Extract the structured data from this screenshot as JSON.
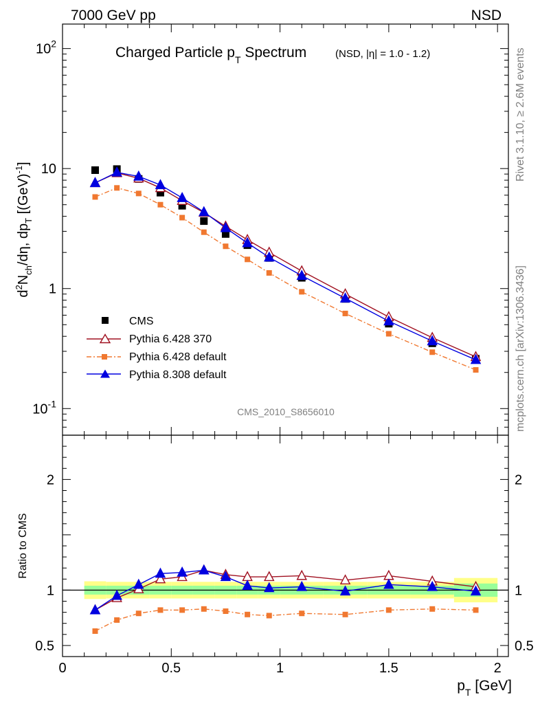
{
  "header": {
    "left": "7000 GeV pp",
    "right": "NSD"
  },
  "side": {
    "rivet": "Rivet 3.1.10, ≥ 2.6M events",
    "mcplots": "mcplots.cern.ch [arXiv:1306.3436]"
  },
  "analysis_id": "CMS_2010_S8656010",
  "chart_data": {
    "type": "line",
    "title": "Charged Particle p_T Spectrum",
    "title_main": "Charged Particle p",
    "title_sub": "T",
    "title_tail": " Spectrum",
    "subtitle": "(NSD, |η| = 1.0 - 1.2)",
    "xlabel": "p_T [GeV]",
    "ylabel": "d²N_ch/dη, dp_T [(GeV)⁻¹]",
    "ratio_ylabel": "Ratio to CMS",
    "xlim": [
      0,
      2.05
    ],
    "ylim": [
      0.06,
      160
    ],
    "yscale": "log",
    "ratio_ylim": [
      0.4,
      2.4
    ],
    "legend_position": "lower-left",
    "x_ticks": [
      "0",
      "0.5",
      "1",
      "1.5",
      "2"
    ],
    "y_ticks": [
      "10⁻¹",
      "1",
      "10",
      "10²"
    ],
    "ratio_ticks": [
      "0.5",
      "1",
      "2"
    ],
    "series": [
      {
        "name": "CMS",
        "color": "#000000",
        "marker": "square",
        "x": [
          0.15,
          0.25,
          0.35,
          0.45,
          0.55,
          0.65,
          0.75,
          0.85,
          0.95,
          1.1,
          1.3,
          1.5,
          1.7,
          1.9
        ],
        "values": [
          9.7,
          9.9,
          8.2,
          6.3,
          4.9,
          3.65,
          2.85,
          2.3,
          1.8,
          1.23,
          0.82,
          0.51,
          0.35,
          0.26
        ],
        "band_edges": [
          0.1,
          0.2,
          0.3,
          0.4,
          0.5,
          0.6,
          0.7,
          0.8,
          0.9,
          1.0,
          1.2,
          1.4,
          1.6,
          1.8,
          2.0
        ],
        "stat_err": [
          0.04,
          0.04,
          0.04,
          0.04,
          0.04,
          0.04,
          0.04,
          0.04,
          0.04,
          0.04,
          0.04,
          0.04,
          0.04,
          0.06
        ],
        "total_err": [
          0.08,
          0.075,
          0.075,
          0.075,
          0.075,
          0.075,
          0.075,
          0.075,
          0.075,
          0.075,
          0.075,
          0.075,
          0.075,
          0.11
        ]
      },
      {
        "name": "Pythia 6.428 370",
        "color": "#a01020",
        "marker": "open-triangle",
        "style": "solid",
        "x": [
          0.15,
          0.25,
          0.35,
          0.45,
          0.55,
          0.65,
          0.75,
          0.85,
          0.95,
          1.1,
          1.3,
          1.5,
          1.7,
          1.9
        ],
        "values": [
          7.6,
          9.2,
          8.3,
          6.9,
          5.4,
          4.3,
          3.3,
          2.55,
          2.0,
          1.4,
          0.9,
          0.58,
          0.39,
          0.27
        ],
        "ratio": [
          0.82,
          0.93,
          1.01,
          1.1,
          1.12,
          1.18,
          1.14,
          1.12,
          1.12,
          1.13,
          1.09,
          1.13,
          1.08,
          1.03
        ]
      },
      {
        "name": "Pythia 6.428 default",
        "color": "#f07830",
        "marker": "square",
        "style": "dashdot",
        "x": [
          0.15,
          0.25,
          0.35,
          0.45,
          0.55,
          0.65,
          0.75,
          0.85,
          0.95,
          1.1,
          1.3,
          1.5,
          1.7,
          1.9
        ],
        "values": [
          5.8,
          6.9,
          6.2,
          5.0,
          3.9,
          2.95,
          2.25,
          1.75,
          1.35,
          0.94,
          0.62,
          0.42,
          0.295,
          0.21
        ],
        "ratio": [
          0.63,
          0.73,
          0.79,
          0.82,
          0.82,
          0.83,
          0.81,
          0.78,
          0.77,
          0.79,
          0.78,
          0.82,
          0.83,
          0.82
        ]
      },
      {
        "name": "Pythia 8.308 default",
        "color": "#0000e0",
        "marker": "triangle",
        "style": "solid",
        "x": [
          0.15,
          0.25,
          0.35,
          0.45,
          0.55,
          0.65,
          0.75,
          0.85,
          0.95,
          1.1,
          1.3,
          1.5,
          1.7,
          1.9
        ],
        "values": [
          7.6,
          9.3,
          8.6,
          7.3,
          5.7,
          4.35,
          3.2,
          2.4,
          1.82,
          1.28,
          0.83,
          0.535,
          0.365,
          0.255
        ],
        "ratio": [
          0.82,
          0.95,
          1.05,
          1.15,
          1.16,
          1.18,
          1.12,
          1.04,
          1.02,
          1.03,
          0.99,
          1.05,
          1.03,
          0.99
        ]
      }
    ]
  }
}
